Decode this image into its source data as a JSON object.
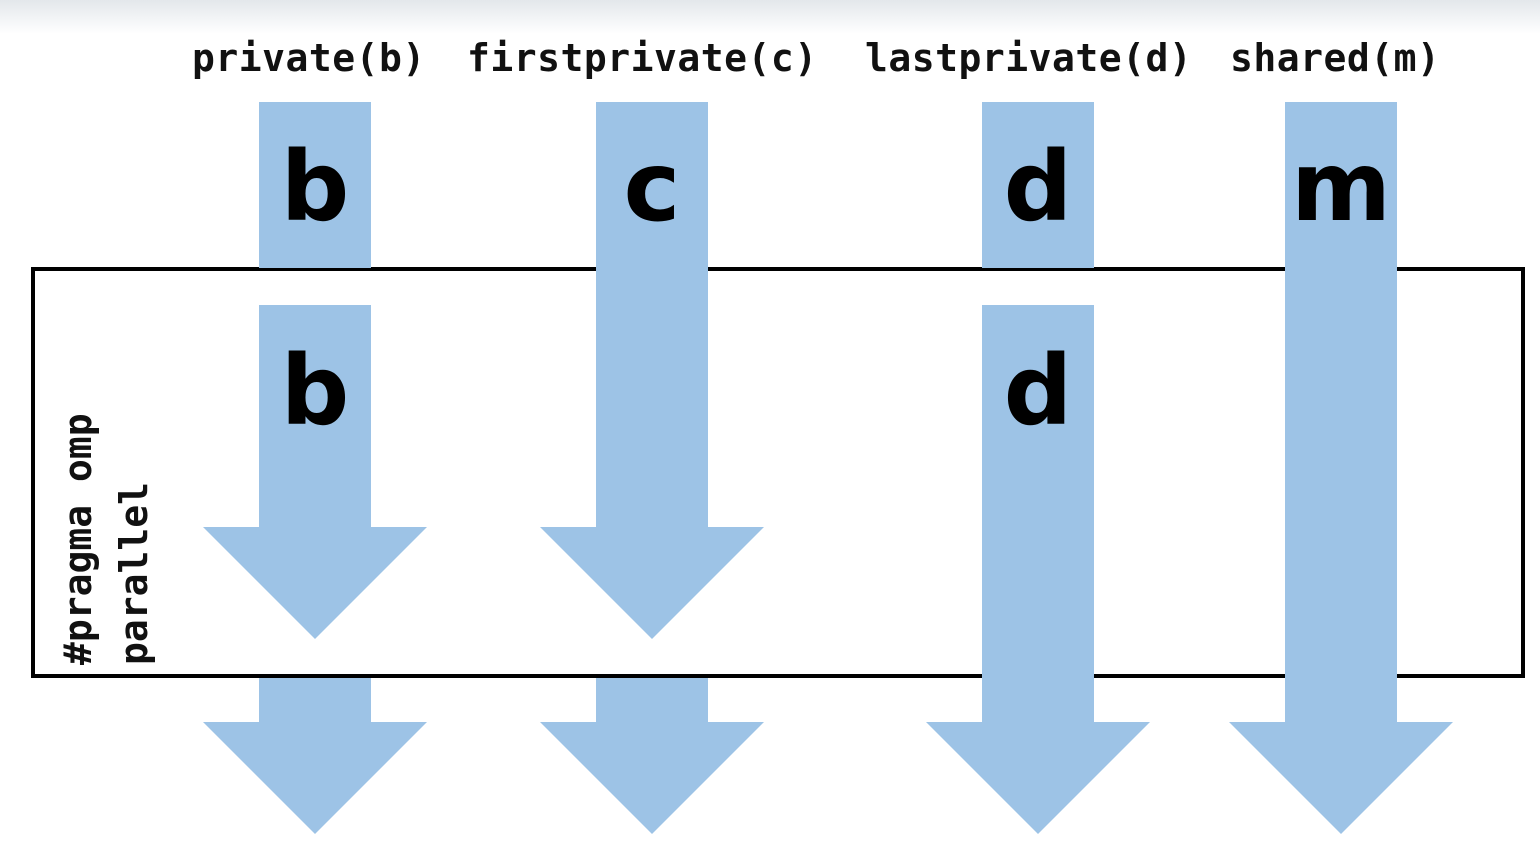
{
  "clauses": {
    "private": "private(b)",
    "firstprivate": "firstprivate(c)",
    "lastprivate": "lastprivate(d)",
    "shared": "shared(m)"
  },
  "variables": {
    "b_outer": "b",
    "b_inner": "b",
    "c_outer": "c",
    "d_outer": "d",
    "d_inner": "d",
    "m_outer": "m"
  },
  "region": {
    "line1": "#pragma omp",
    "line2": "parallel"
  },
  "colors": {
    "arrow": "#9dc3e6",
    "border": "#000000",
    "text": "#111111"
  }
}
